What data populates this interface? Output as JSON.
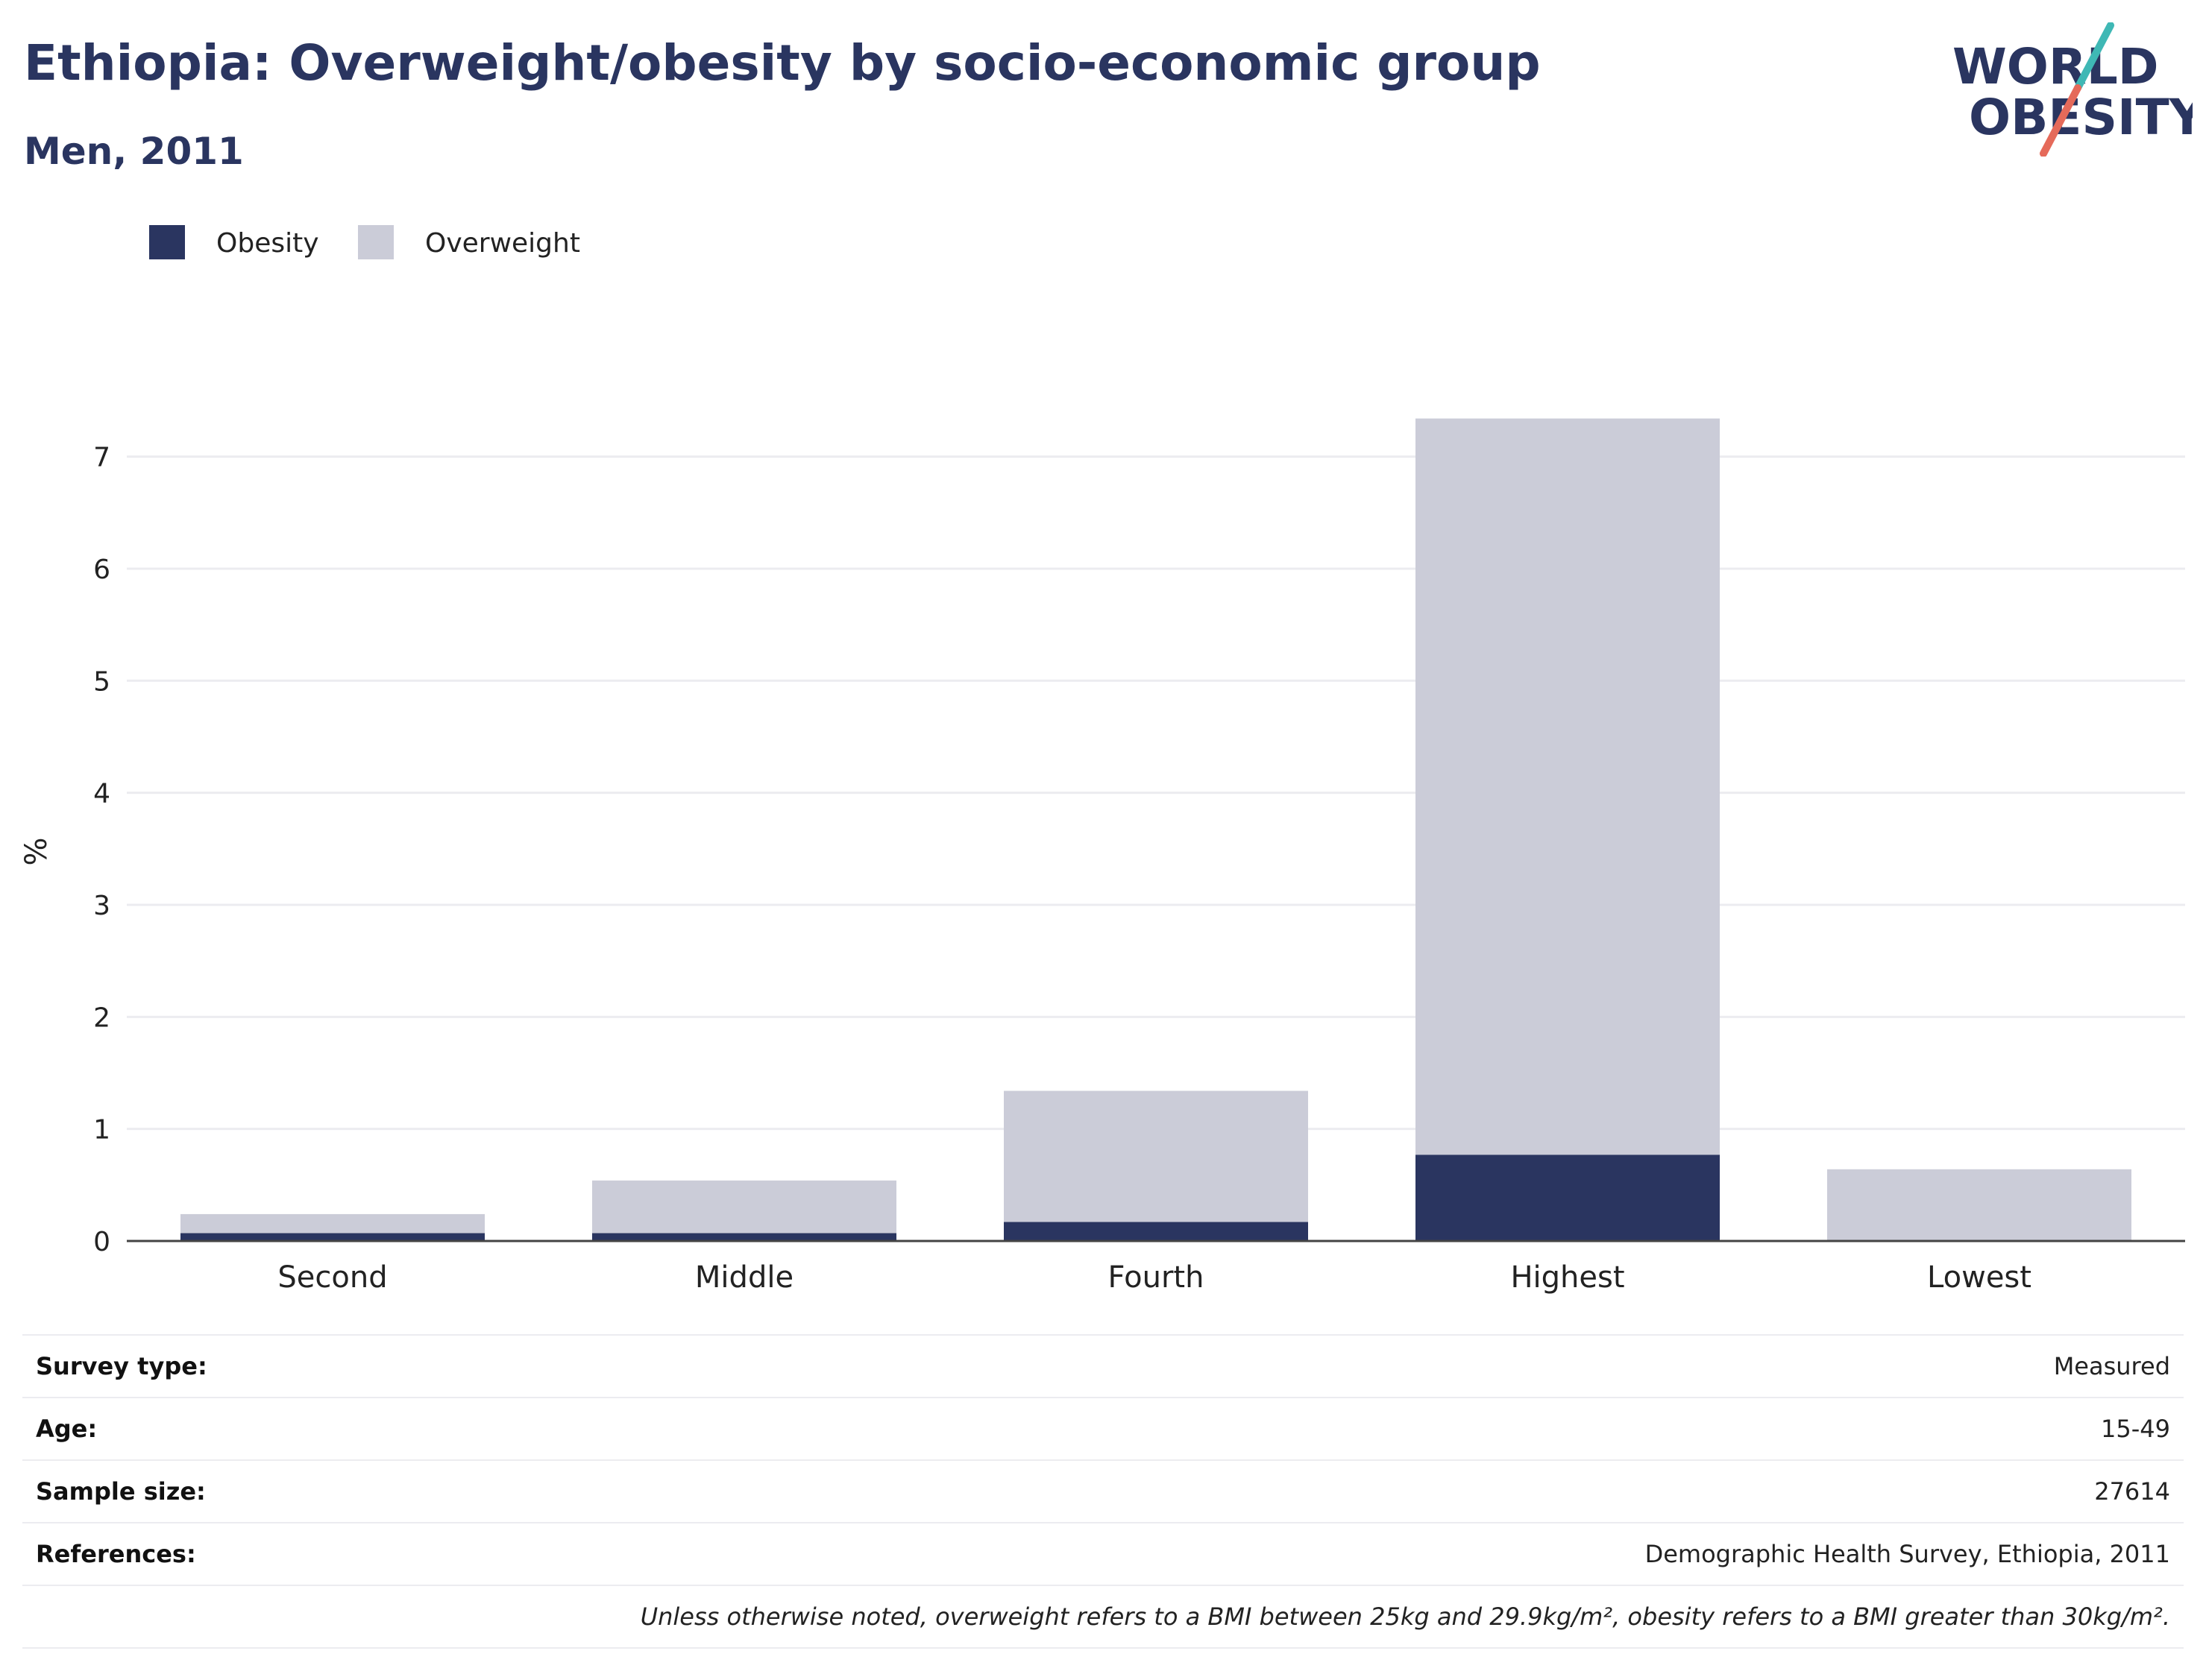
{
  "header": {
    "title": "Ethiopia: Overweight/obesity by socio-economic group",
    "subtitle": "Men, 2011"
  },
  "logo": {
    "line1": "WORLD",
    "line2": "OBESITY",
    "accent_teal": "#3fb8b5",
    "accent_coral": "#e56a5a",
    "text_color": "#2a3560"
  },
  "colors": {
    "obesity": "#2a3560",
    "overweight": "#cbccd8",
    "grid": "#ececf0",
    "axis": "#444444"
  },
  "chart_data": {
    "type": "bar",
    "stacked": true,
    "categories": [
      "Second",
      "Middle",
      "Fourth",
      "Highest",
      "Lowest"
    ],
    "series": [
      {
        "name": "Obesity",
        "values": [
          0.07,
          0.07,
          0.17,
          0.77,
          0.0
        ]
      },
      {
        "name": "Overweight",
        "values": [
          0.17,
          0.47,
          1.17,
          6.57,
          0.64
        ]
      }
    ],
    "ylabel": "%",
    "ylim": [
      0,
      7.35
    ],
    "yticks": [
      0,
      1,
      2,
      3,
      4,
      5,
      6,
      7
    ],
    "grid": true,
    "legend_position": "top-left"
  },
  "meta": {
    "rows": [
      {
        "label": "Survey type:",
        "value": "Measured"
      },
      {
        "label": "Age:",
        "value": "15-49"
      },
      {
        "label": "Sample size:",
        "value": "27614"
      },
      {
        "label": "References:",
        "value": "Demographic Health Survey, Ethiopia, 2011"
      }
    ],
    "note": "Unless otherwise noted, overweight refers to a BMI between 25kg and 29.9kg/m², obesity refers to a BMI greater than 30kg/m²."
  }
}
